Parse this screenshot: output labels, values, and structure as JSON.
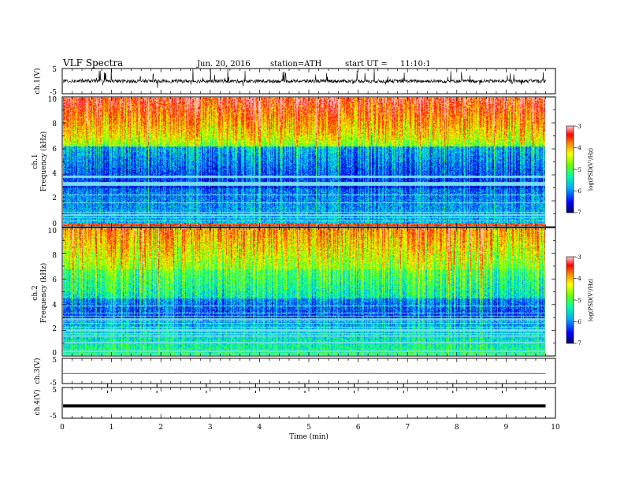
{
  "header": {
    "title": "VLF  Spectra",
    "date": "Jun. 20, 2016",
    "station": "station=ATH",
    "start_label": "start  UT  =",
    "start_time": "11:10:1"
  },
  "x_axis": {
    "label": "Time  (min)",
    "range": [
      0,
      10
    ],
    "ticks": [
      "0",
      "1",
      "2",
      "3",
      "4",
      "5",
      "6",
      "7",
      "8",
      "9",
      "10"
    ]
  },
  "panels": {
    "ch1_wave": {
      "ylabel": "ch.1(V)",
      "ticks": [
        "5",
        "-5"
      ],
      "ylim": [
        -5,
        5
      ]
    },
    "ch1_spec": {
      "ylabel_1": "ch.1",
      "ylabel_2": "Frequency  (kHz)",
      "ticks": [
        "10",
        "8",
        "6",
        "4",
        "2",
        "0"
      ],
      "ylim": [
        0,
        10
      ],
      "colorbar": {
        "label": "log(PSD(V²/Hz)",
        "ticks": [
          "-3",
          "-4",
          "-5",
          "-6",
          "-7"
        ],
        "range": [
          -7,
          -3
        ]
      }
    },
    "ch2_spec": {
      "ylabel_1": "ch.2",
      "ylabel_2": "Frequency  (kHz)",
      "ticks": [
        "10",
        "8",
        "6",
        "4",
        "2",
        "0"
      ],
      "ylim": [
        0,
        10
      ],
      "colorbar": {
        "label": "log(PSD(V²/Hz)",
        "ticks": [
          "-3",
          "-4",
          "-5",
          "-6",
          "-7"
        ],
        "range": [
          -7,
          -3
        ]
      }
    },
    "ch3_wave": {
      "ylabel": "ch.3(V)",
      "ticks": [
        "5",
        "-5"
      ],
      "ylim": [
        -5,
        5
      ]
    },
    "ch4_wave": {
      "ylabel": "ch.4(V)",
      "ticks": [
        "5",
        "-5"
      ],
      "ylim": [
        -5,
        5
      ]
    }
  },
  "colors": {
    "colormap": [
      "#000066",
      "#0000ff",
      "#00aaff",
      "#00ffaa",
      "#66ff00",
      "#ffff00",
      "#ff8800",
      "#ff0000",
      "#ffcccc"
    ]
  },
  "chart_data": {
    "type": "heatmap",
    "x_range_min": [
      0,
      10
    ],
    "data_end_min": 9.8,
    "y_range_kHz": [
      0,
      10
    ],
    "value_range_log_psd": [
      -7,
      -3
    ],
    "ch1_wave_baseline_V": 0,
    "ch3_wave_baseline_V": -1,
    "ch4_wave_baseline_V": -1
  }
}
